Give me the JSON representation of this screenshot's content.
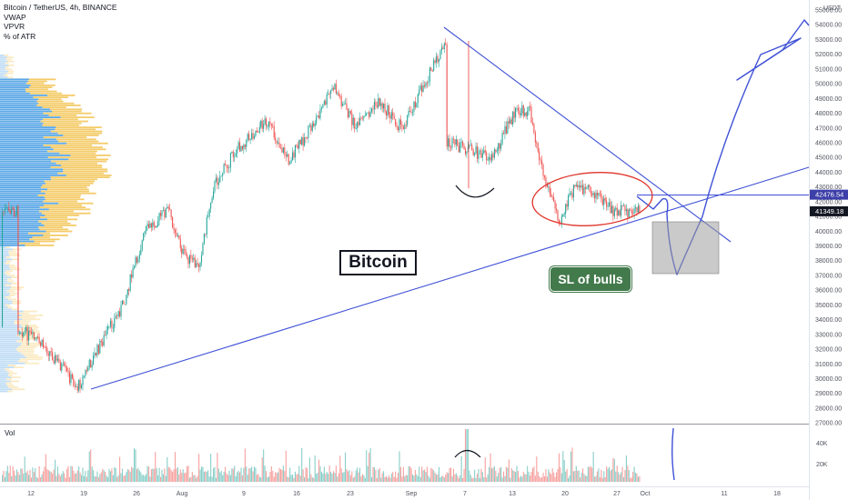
{
  "header": {
    "symbol": "Bitcoin / TetherUS, 4h, BINANCE",
    "indicators": [
      "VWAP",
      "VPVR",
      "% of ATR"
    ]
  },
  "price_axis": {
    "currency": "USDT",
    "ticks": [
      "55000.00",
      "54000.00",
      "53000.00",
      "52000.00",
      "51000.00",
      "50000.00",
      "49000.00",
      "48000.00",
      "47000.00",
      "46000.00",
      "45000.00",
      "44000.00",
      "43000.00",
      "42000.00",
      "41000.00",
      "40000.00",
      "39000.00",
      "38000.00",
      "37000.00",
      "36000.00",
      "35000.00",
      "34000.00",
      "33000.00",
      "32000.00",
      "31000.00",
      "30000.00",
      "29000.00",
      "28000.00",
      "27000.00"
    ],
    "tags": [
      {
        "value": "42476.54",
        "color": "#3c3fa8"
      },
      {
        "value": "41349.18",
        "color": "#131722"
      }
    ]
  },
  "time_axis": {
    "ticks": [
      "12",
      "19",
      "26",
      "Aug",
      "9",
      "16",
      "23",
      "Sep",
      "7",
      "13",
      "20",
      "27",
      "Oct",
      "11",
      "18"
    ]
  },
  "volume_pane": {
    "label": "Vol",
    "ticks": [
      "40K",
      "20K"
    ]
  },
  "annotations": {
    "title_box": "Bitcoin",
    "sl_label": "SL of bulls"
  },
  "colors": {
    "up": "#26a69a",
    "down": "#ef5350",
    "drawing": "#3f51d6",
    "ellipse": "#e0352b",
    "vpvr_up": "#4a9fe3",
    "vpvr_down": "#f3c75a",
    "sl_box": "#437a4c"
  },
  "chart_data": {
    "type": "candlestick",
    "title": "Bitcoin / TetherUS, 4h, BINANCE",
    "ylim": [
      27000,
      55000
    ],
    "x_ticks": [
      "12",
      "19",
      "26",
      "Aug",
      "9",
      "16",
      "23",
      "Sep",
      "7",
      "13",
      "20",
      "27",
      "Oct",
      "11",
      "18"
    ],
    "price_path": [
      {
        "date": "Jul 12",
        "price": 33500
      },
      {
        "date": "Jul 16",
        "price": 32000
      },
      {
        "date": "Jul 20",
        "price": 29400
      },
      {
        "date": "Jul 23",
        "price": 32300
      },
      {
        "date": "Jul 26",
        "price": 35000
      },
      {
        "date": "Jul 29",
        "price": 40000
      },
      {
        "date": "Aug 1",
        "price": 41500
      },
      {
        "date": "Aug 3",
        "price": 38500
      },
      {
        "date": "Aug 5",
        "price": 37500
      },
      {
        "date": "Aug 7",
        "price": 43000
      },
      {
        "date": "Aug 10",
        "price": 45500
      },
      {
        "date": "Aug 14",
        "price": 47500
      },
      {
        "date": "Aug 17",
        "price": 44800
      },
      {
        "date": "Aug 20",
        "price": 47000
      },
      {
        "date": "Aug 23",
        "price": 49800
      },
      {
        "date": "Aug 26",
        "price": 47000
      },
      {
        "date": "Aug 29",
        "price": 48800
      },
      {
        "date": "Sep 1",
        "price": 47000
      },
      {
        "date": "Sep 4",
        "price": 50000
      },
      {
        "date": "Sep 7",
        "price": 52800
      },
      {
        "date": "Sep 7",
        "price": 46000
      },
      {
        "date": "Sep 10",
        "price": 45500
      },
      {
        "date": "Sep 13",
        "price": 45000
      },
      {
        "date": "Sep 16",
        "price": 48000
      },
      {
        "date": "Sep 18",
        "price": 48200
      },
      {
        "date": "Sep 20",
        "price": 43500
      },
      {
        "date": "Sep 22",
        "price": 40800
      },
      {
        "date": "Sep 24",
        "price": 43000
      },
      {
        "date": "Sep 27",
        "price": 42500
      },
      {
        "date": "Sep 29",
        "price": 41349
      }
    ],
    "volume_ylabels": [
      "40K",
      "20K"
    ]
  }
}
